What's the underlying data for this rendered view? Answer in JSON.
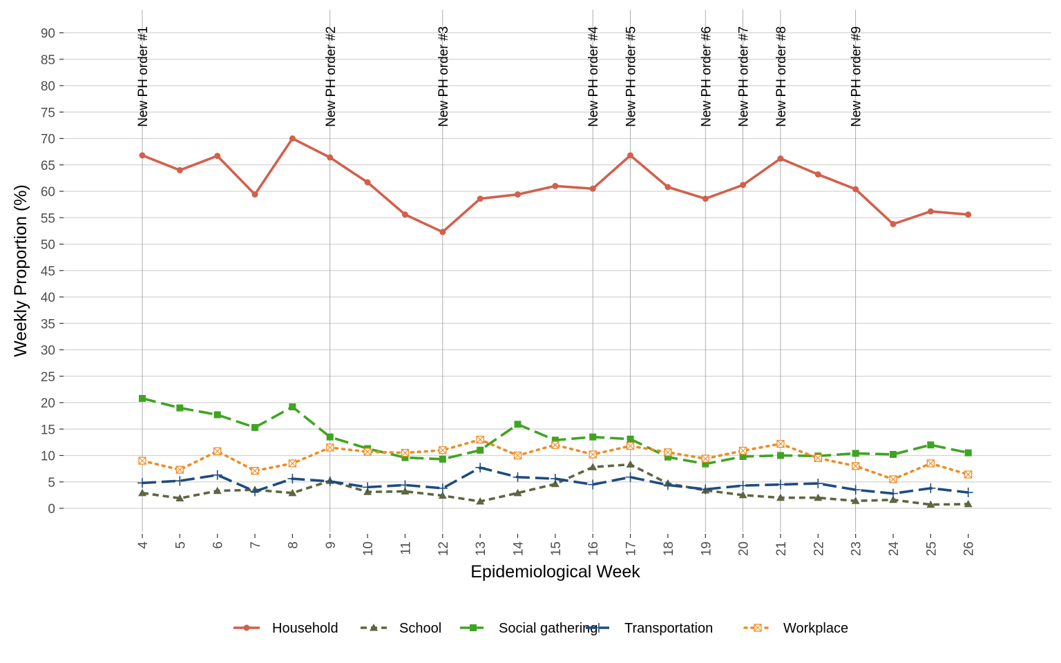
{
  "chart_data": {
    "type": "line",
    "xlabel": "Epidemiological Week",
    "ylabel": "Weekly Proportion (%)",
    "ylim": [
      0,
      90
    ],
    "yticks": [
      0,
      5,
      10,
      15,
      20,
      25,
      30,
      35,
      40,
      45,
      50,
      55,
      60,
      65,
      70,
      75,
      80,
      85,
      90
    ],
    "x": [
      4,
      5,
      6,
      7,
      8,
      9,
      10,
      11,
      12,
      13,
      14,
      15,
      16,
      17,
      18,
      19,
      20,
      21,
      22,
      23,
      24,
      25,
      26
    ],
    "grid": "horizontal",
    "legend": "bottom",
    "series": [
      {
        "name": "Household",
        "color": "#d2604c",
        "dash": "solid",
        "marker": "circle",
        "values": [
          66.8,
          64.0,
          66.7,
          59.4,
          70.0,
          66.4,
          61.7,
          55.6,
          52.3,
          58.6,
          59.4,
          61.0,
          60.5,
          66.8,
          60.8,
          58.6,
          61.2,
          66.2,
          63.2,
          60.4,
          53.8,
          56.2,
          55.6
        ]
      },
      {
        "name": "School",
        "color": "#5e6640",
        "dash": "dashed",
        "marker": "triangle",
        "values": [
          2.9,
          1.9,
          3.3,
          3.5,
          2.9,
          5.2,
          3.1,
          3.2,
          2.4,
          1.3,
          2.9,
          4.6,
          7.8,
          8.3,
          4.7,
          3.4,
          2.5,
          2.0,
          2.0,
          1.4,
          1.6,
          0.7,
          0.8
        ]
      },
      {
        "name": "Social gathering",
        "color": "#3fa423",
        "dash": "longdash",
        "marker": "square",
        "values": [
          20.8,
          19.0,
          17.7,
          15.3,
          19.2,
          13.5,
          11.3,
          9.6,
          9.3,
          11.0,
          15.9,
          12.9,
          13.5,
          13.1,
          9.7,
          8.4,
          9.8,
          10.0,
          9.9,
          10.4,
          10.2,
          12.0,
          10.5
        ]
      },
      {
        "name": "Transportation",
        "color": "#1f4b80",
        "dash": "longdash",
        "marker": "plus",
        "values": [
          4.8,
          5.2,
          6.3,
          3.2,
          5.6,
          5.1,
          4.0,
          4.4,
          3.8,
          7.7,
          5.9,
          5.6,
          4.5,
          5.9,
          4.4,
          3.6,
          4.3,
          4.5,
          4.7,
          3.5,
          2.8,
          3.8,
          3.0
        ]
      },
      {
        "name": "Workplace",
        "color": "#f08a24",
        "dash": "dotted",
        "marker": "boxcross",
        "values": [
          9.0,
          7.3,
          10.8,
          7.1,
          8.5,
          11.5,
          10.7,
          10.5,
          11.0,
          13.0,
          10.0,
          12.0,
          10.2,
          11.8,
          10.6,
          9.4,
          10.9,
          12.2,
          9.5,
          8.0,
          5.5,
          8.5,
          6.4
        ]
      }
    ],
    "annotations": [
      {
        "x": 4,
        "label": "New PH order #1"
      },
      {
        "x": 9,
        "label": "New PH order #2"
      },
      {
        "x": 12,
        "label": "New PH order #3"
      },
      {
        "x": 16,
        "label": "New PH order #4"
      },
      {
        "x": 17,
        "label": "New PH order #5"
      },
      {
        "x": 19,
        "label": "New PH order #6"
      },
      {
        "x": 20,
        "label": "New PH order #7"
      },
      {
        "x": 21,
        "label": "New PH order #8"
      },
      {
        "x": 23,
        "label": "New PH order #9"
      }
    ]
  }
}
